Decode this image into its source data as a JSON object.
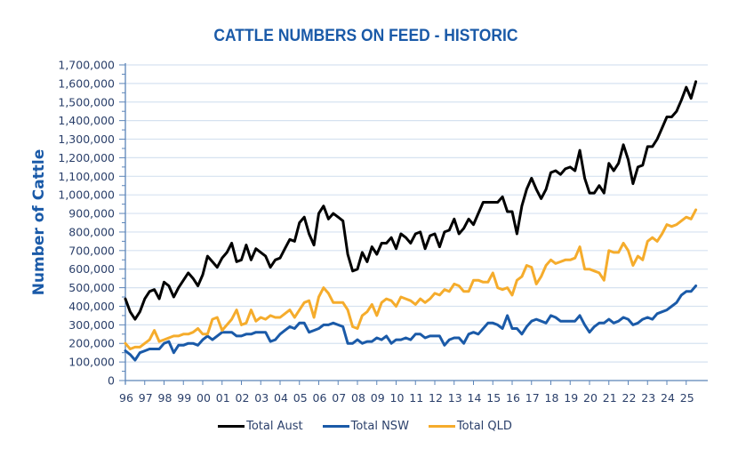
{
  "chart_data": {
    "type": "line",
    "title": "CATTLE NUMBERS ON FEED - HISTORIC",
    "xlabel": "",
    "ylabel": "Number of Cattle",
    "ylim": [
      0,
      1700000
    ],
    "yticks": [
      0,
      100000,
      200000,
      300000,
      400000,
      500000,
      600000,
      700000,
      800000,
      900000,
      1000000,
      1100000,
      1200000,
      1300000,
      1400000,
      1500000,
      1600000,
      1700000
    ],
    "ytick_labels": [
      "0",
      "100,000",
      "200,000",
      "300,000",
      "400,000",
      "500,000",
      "600,000",
      "700,000",
      "800,000",
      "900,000",
      "1,000,000",
      "1,100,000",
      "1,200,000",
      "1,300,000",
      "1,400,000",
      "1,500,000",
      "1,600,000",
      "1,700,000"
    ],
    "xtick_labels": [
      "96",
      "97",
      "98",
      "99",
      "00",
      "01",
      "02",
      "03",
      "04",
      "05",
      "06",
      "07",
      "08",
      "09",
      "10",
      "11",
      "12",
      "13",
      "14",
      "15",
      "16",
      "17",
      "18",
      "19",
      "20",
      "21",
      "22",
      "23",
      "24",
      "25"
    ],
    "x_unit": "quarters since start of 1996",
    "grid": true,
    "legend_position": "bottom",
    "series": [
      {
        "name": "Total Aust",
        "color": "#000000",
        "values": [
          440000,
          370000,
          330000,
          370000,
          440000,
          480000,
          490000,
          440000,
          530000,
          510000,
          450000,
          500000,
          540000,
          580000,
          550000,
          510000,
          570000,
          670000,
          640000,
          610000,
          660000,
          690000,
          740000,
          640000,
          650000,
          730000,
          650000,
          710000,
          690000,
          670000,
          610000,
          650000,
          660000,
          710000,
          760000,
          750000,
          850000,
          880000,
          790000,
          730000,
          900000,
          940000,
          870000,
          900000,
          880000,
          860000,
          680000,
          590000,
          600000,
          690000,
          640000,
          720000,
          680000,
          740000,
          740000,
          770000,
          710000,
          790000,
          770000,
          740000,
          790000,
          800000,
          710000,
          780000,
          790000,
          720000,
          800000,
          810000,
          870000,
          790000,
          820000,
          870000,
          840000,
          900000,
          960000,
          960000,
          960000,
          960000,
          990000,
          910000,
          910000,
          790000,
          940000,
          1030000,
          1090000,
          1030000,
          980000,
          1030000,
          1120000,
          1130000,
          1110000,
          1140000,
          1150000,
          1130000,
          1240000,
          1090000,
          1010000,
          1010000,
          1050000,
          1010000,
          1170000,
          1130000,
          1170000,
          1270000,
          1190000,
          1060000,
          1150000,
          1160000,
          1260000,
          1260000,
          1300000,
          1360000,
          1420000,
          1420000,
          1450000,
          1510000,
          1580000,
          1520000,
          1610000
        ]
      },
      {
        "name": "Total NSW",
        "color": "#1a5aa8",
        "values": [
          160000,
          140000,
          110000,
          150000,
          160000,
          170000,
          170000,
          170000,
          200000,
          210000,
          150000,
          190000,
          190000,
          200000,
          200000,
          190000,
          220000,
          240000,
          220000,
          240000,
          260000,
          260000,
          260000,
          240000,
          240000,
          250000,
          250000,
          260000,
          260000,
          260000,
          210000,
          220000,
          250000,
          270000,
          290000,
          280000,
          310000,
          310000,
          260000,
          270000,
          280000,
          300000,
          300000,
          310000,
          300000,
          290000,
          200000,
          200000,
          220000,
          200000,
          210000,
          210000,
          230000,
          220000,
          240000,
          200000,
          220000,
          220000,
          230000,
          220000,
          250000,
          250000,
          230000,
          240000,
          240000,
          240000,
          190000,
          220000,
          230000,
          230000,
          200000,
          250000,
          260000,
          250000,
          280000,
          310000,
          310000,
          300000,
          280000,
          350000,
          280000,
          280000,
          250000,
          290000,
          320000,
          330000,
          320000,
          310000,
          350000,
          340000,
          320000,
          320000,
          320000,
          320000,
          350000,
          300000,
          260000,
          290000,
          310000,
          310000,
          330000,
          310000,
          320000,
          340000,
          330000,
          300000,
          310000,
          330000,
          340000,
          330000,
          360000,
          370000,
          380000,
          400000,
          420000,
          460000,
          480000,
          480000,
          510000
        ]
      },
      {
        "name": "Total QLD",
        "color": "#f5ac2c",
        "values": [
          200000,
          170000,
          180000,
          180000,
          200000,
          220000,
          270000,
          210000,
          220000,
          230000,
          240000,
          240000,
          250000,
          250000,
          260000,
          280000,
          250000,
          250000,
          330000,
          340000,
          270000,
          300000,
          330000,
          380000,
          300000,
          310000,
          380000,
          320000,
          340000,
          330000,
          350000,
          340000,
          340000,
          360000,
          380000,
          340000,
          380000,
          420000,
          430000,
          340000,
          450000,
          500000,
          470000,
          420000,
          420000,
          420000,
          380000,
          290000,
          280000,
          350000,
          370000,
          410000,
          350000,
          420000,
          440000,
          430000,
          400000,
          450000,
          440000,
          430000,
          410000,
          440000,
          420000,
          440000,
          470000,
          460000,
          490000,
          480000,
          520000,
          510000,
          480000,
          480000,
          540000,
          540000,
          530000,
          530000,
          580000,
          500000,
          490000,
          500000,
          460000,
          540000,
          560000,
          620000,
          610000,
          520000,
          560000,
          620000,
          650000,
          630000,
          640000,
          650000,
          650000,
          660000,
          720000,
          600000,
          600000,
          590000,
          580000,
          540000,
          700000,
          690000,
          690000,
          740000,
          700000,
          620000,
          670000,
          650000,
          750000,
          770000,
          750000,
          790000,
          840000,
          830000,
          840000,
          860000,
          880000,
          870000,
          920000
        ]
      }
    ]
  }
}
